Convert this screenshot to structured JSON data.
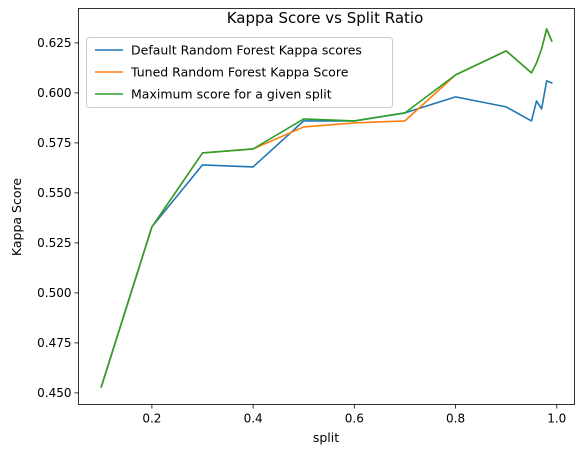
{
  "chart_data": {
    "type": "line",
    "title": "Kappa Score vs Split Ratio",
    "xlabel": "split",
    "ylabel": "Kappa Score",
    "xlim": [
      0.055,
      1.035
    ],
    "ylim": [
      0.4442,
      0.6422
    ],
    "xticks": [
      0.2,
      0.4,
      0.6,
      0.8,
      1.0
    ],
    "xtick_labels": [
      "0.2",
      "0.4",
      "0.6",
      "0.8",
      "1.0"
    ],
    "yticks": [
      0.45,
      0.475,
      0.5,
      0.525,
      0.55,
      0.575,
      0.6,
      0.625
    ],
    "ytick_labels": [
      "0.450",
      "0.475",
      "0.500",
      "0.525",
      "0.550",
      "0.575",
      "0.600",
      "0.625"
    ],
    "grid": false,
    "legend_position": "upper-left",
    "series": [
      {
        "name": "Default Random Forest Kappa scores",
        "color": "#1f77b4",
        "x": [
          0.1,
          0.2,
          0.3,
          0.4,
          0.5,
          0.6,
          0.7,
          0.8,
          0.9,
          0.95,
          0.96,
          0.97,
          0.98,
          0.99
        ],
        "y": [
          0.453,
          0.533,
          0.564,
          0.563,
          0.586,
          0.586,
          0.59,
          0.598,
          0.593,
          0.586,
          0.596,
          0.592,
          0.606,
          0.605
        ]
      },
      {
        "name": "Tuned Random Forest Kappa Score",
        "color": "#ff7f0e",
        "x": [
          0.1,
          0.2,
          0.3,
          0.4,
          0.5,
          0.6,
          0.7,
          0.8,
          0.9,
          0.95,
          0.96,
          0.97,
          0.98,
          0.99
        ],
        "y": [
          0.453,
          0.533,
          0.57,
          0.572,
          0.583,
          0.585,
          0.586,
          0.609,
          0.621,
          0.61,
          0.615,
          0.622,
          0.632,
          0.626
        ]
      },
      {
        "name": "Maximum score for a given split",
        "color": "#2ca02c",
        "x": [
          0.1,
          0.2,
          0.3,
          0.4,
          0.5,
          0.6,
          0.7,
          0.8,
          0.9,
          0.95,
          0.96,
          0.97,
          0.98,
          0.99
        ],
        "y": [
          0.453,
          0.533,
          0.57,
          0.572,
          0.587,
          0.586,
          0.59,
          0.609,
          0.621,
          0.61,
          0.615,
          0.622,
          0.632,
          0.626
        ]
      }
    ]
  }
}
